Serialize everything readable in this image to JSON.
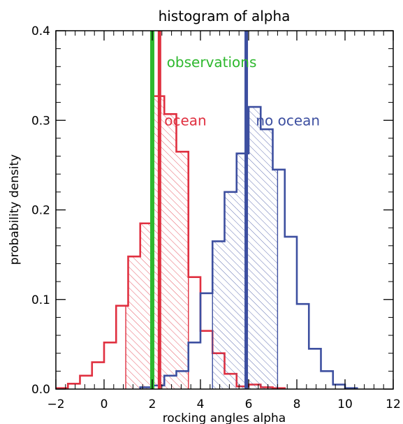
{
  "chart_data": {
    "type": "histogram",
    "title": "histogram of alpha",
    "xlabel": "rocking angles alpha",
    "ylabel": "probability density",
    "xlim": [
      -2,
      12
    ],
    "ylim": [
      0,
      0.4
    ],
    "xticks": [
      -2,
      0,
      2,
      4,
      6,
      8,
      10,
      12
    ],
    "yticks": [
      0.0,
      0.1,
      0.2,
      0.3,
      0.4
    ],
    "ytick_labels": [
      "0.0",
      "0.1",
      "0.2",
      "0.3",
      "0.4"
    ],
    "bin_width": 0.5,
    "grid": false,
    "series": [
      {
        "name": "ocean",
        "color": "#e03040",
        "bin_starts": [
          -2.0,
          -1.5,
          -1.0,
          -0.5,
          0.0,
          0.5,
          1.0,
          1.5,
          2.0,
          2.5,
          3.0,
          3.5,
          4.0,
          4.5,
          5.0,
          5.5,
          6.0,
          6.5,
          7.0
        ],
        "values": [
          0.001,
          0.006,
          0.015,
          0.03,
          0.052,
          0.093,
          0.148,
          0.185,
          0.327,
          0.307,
          0.265,
          0.125,
          0.065,
          0.04,
          0.017,
          0.003,
          0.005,
          0.002,
          0.001
        ],
        "shaded_range": [
          0.9,
          3.5
        ]
      },
      {
        "name": "no ocean",
        "color": "#3d4fa0",
        "bin_starts": [
          1.5,
          2.0,
          2.5,
          3.0,
          3.5,
          4.0,
          4.5,
          5.0,
          5.5,
          6.0,
          6.5,
          7.0,
          7.5,
          8.0,
          8.5,
          9.0,
          9.5,
          10.0
        ],
        "values": [
          0.002,
          0.004,
          0.015,
          0.02,
          0.052,
          0.107,
          0.165,
          0.22,
          0.263,
          0.315,
          0.29,
          0.245,
          0.17,
          0.095,
          0.045,
          0.02,
          0.005,
          0.001
        ],
        "shaded_range": [
          4.5,
          7.2
        ]
      }
    ],
    "markers": [
      {
        "label": "observations",
        "x": 2.0,
        "color": "#2eb82e"
      },
      {
        "label": "",
        "x": 2.3,
        "color": "#e03040"
      },
      {
        "label": "",
        "x": 5.9,
        "color": "#3d4fa0"
      }
    ],
    "annotations": [
      {
        "text": "observations",
        "color": "#2eb82e"
      },
      {
        "text": "ocean",
        "color": "#e03040"
      },
      {
        "text": "no ocean",
        "color": "#3d4fa0"
      }
    ]
  }
}
